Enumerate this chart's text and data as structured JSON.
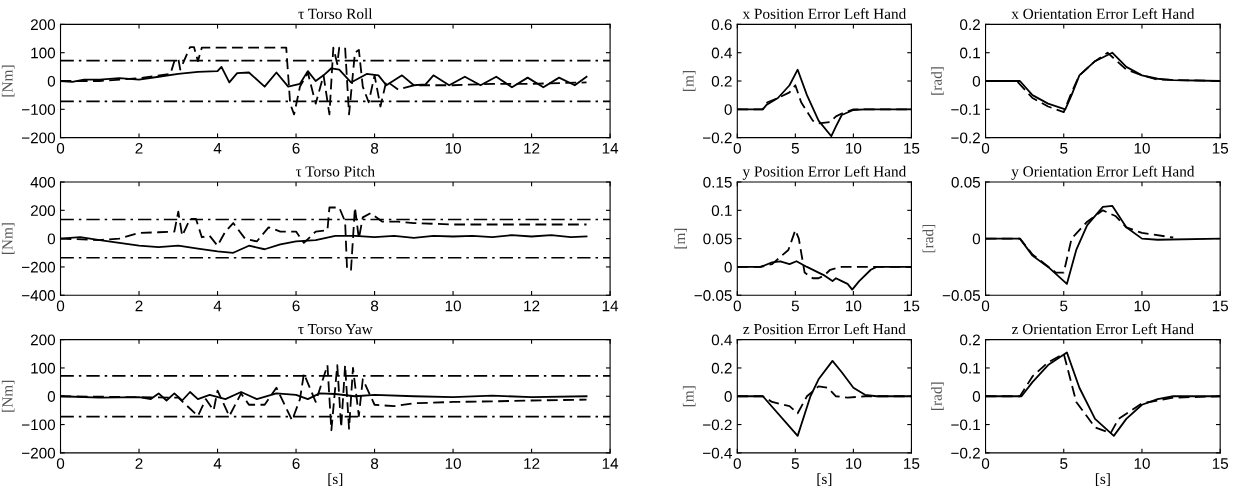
{
  "chart_data": [
    {
      "type": "line",
      "title": "τ Torso Roll",
      "ylabel": "[Nm]",
      "xlim": [
        0,
        14
      ],
      "xticks": [
        0,
        2,
        4,
        6,
        8,
        10,
        12,
        14
      ],
      "ylim": [
        -200,
        200
      ],
      "yticks": [
        -200,
        -100,
        0,
        100,
        200
      ],
      "grid": false,
      "ref_lines": [
        {
          "axis": "y",
          "value": 72,
          "color": "#000000",
          "line_style": "dashdot"
        },
        {
          "axis": "y",
          "value": -72,
          "color": "#000000",
          "line_style": "dashdot"
        }
      ],
      "series": [
        {
          "color": "#000000",
          "line_style": "solid",
          "x": [
            0,
            0.3,
            0.6,
            1,
            1.5,
            2,
            2.5,
            3,
            3.5,
            4,
            4.1,
            4.3,
            4.5,
            4.8,
            5.2,
            5.5,
            5.8,
            6.1,
            6.3,
            6.5,
            6.7,
            6.9,
            7.1,
            7.4,
            7.6,
            7.8,
            8.1,
            8.3,
            8.7,
            9,
            9.3,
            9.5,
            9.9,
            10.3,
            10.7,
            11.1,
            11.5,
            11.9,
            12.3,
            12.7,
            13.1,
            13.4
          ],
          "values": [
            0,
            -3,
            5,
            5,
            10,
            5,
            15,
            25,
            32,
            35,
            50,
            -5,
            28,
            30,
            -20,
            30,
            -20,
            -10,
            35,
            0,
            20,
            45,
            40,
            -5,
            10,
            25,
            20,
            -15,
            20,
            -15,
            -12,
            20,
            -15,
            15,
            -15,
            15,
            -22,
            12,
            -22,
            12,
            -15,
            15
          ]
        },
        {
          "color": "#000000",
          "line_style": "dashed",
          "x": [
            0,
            1,
            2,
            2.8,
            2.9,
            3,
            3.05,
            3.3,
            3.4,
            3.5,
            3.6,
            5.75,
            5.85,
            5.95,
            6.1,
            6.3,
            6.5,
            6.7,
            6.85,
            6.95,
            7.05,
            7.1,
            7.25,
            7.35,
            7.5,
            7.6,
            7.7,
            7.85,
            8,
            8.15,
            8.3,
            8.6,
            9,
            10,
            11,
            12,
            13.4
          ],
          "values": [
            0,
            0,
            10,
            25,
            70,
            80,
            40,
            120,
            120,
            70,
            118,
            118,
            -80,
            -118,
            -20,
            30,
            -80,
            20,
            -118,
            118,
            60,
            118,
            118,
            -118,
            100,
            110,
            -20,
            -75,
            20,
            -90,
            0,
            -30,
            -15,
            -15,
            -10,
            -10,
            -5
          ]
        }
      ]
    },
    {
      "type": "line",
      "title": "x Position Error Left Hand",
      "ylabel": "[m]",
      "xlim": [
        0,
        15
      ],
      "xticks": [
        0,
        5,
        10,
        15
      ],
      "ylim": [
        -0.2,
        0.6
      ],
      "yticks": [
        -0.2,
        0,
        0.2,
        0.4,
        0.6
      ],
      "grid": false,
      "series": [
        {
          "color": "#000000",
          "line_style": "solid",
          "x": [
            0,
            2.2,
            2.5,
            3.5,
            4.5,
            5.2,
            6,
            7,
            8.1,
            8.5,
            9,
            10,
            11,
            15
          ],
          "values": [
            0,
            0,
            0.03,
            0.08,
            0.17,
            0.28,
            0.1,
            -0.08,
            -0.19,
            -0.12,
            -0.04,
            -0.005,
            0,
            0
          ]
        },
        {
          "color": "#000000",
          "line_style": "dashed",
          "x": [
            0,
            2.2,
            2.6,
            3.5,
            4.5,
            5,
            5.5,
            6.5,
            7,
            8,
            8.5,
            9,
            10,
            15
          ],
          "values": [
            0,
            0,
            0.05,
            0.08,
            0.12,
            0.17,
            0.05,
            -0.08,
            -0.1,
            -0.09,
            -0.05,
            -0.03,
            0,
            0
          ]
        }
      ]
    },
    {
      "type": "line",
      "title": "x Orientation Error Left Hand",
      "ylabel": "[rad]",
      "xlim": [
        0,
        15
      ],
      "xticks": [
        0,
        5,
        10,
        15
      ],
      "ylim": [
        -0.2,
        0.2
      ],
      "yticks": [
        -0.2,
        -0.1,
        0,
        0.1,
        0.2
      ],
      "grid": false,
      "series": [
        {
          "color": "#000000",
          "line_style": "solid",
          "x": [
            0,
            2.2,
            3,
            4,
            5.1,
            5.5,
            6,
            7,
            8.1,
            9,
            10,
            11,
            12,
            15
          ],
          "values": [
            0,
            0,
            -0.05,
            -0.08,
            -0.1,
            -0.05,
            0.02,
            0.07,
            0.1,
            0.05,
            0.02,
            0.008,
            0.003,
            0
          ]
        },
        {
          "color": "#000000",
          "line_style": "dashed",
          "x": [
            0,
            2,
            3,
            4,
            5,
            5.5,
            6,
            7,
            7.8,
            9,
            10,
            11,
            15
          ],
          "values": [
            0,
            0,
            -0.06,
            -0.09,
            -0.11,
            -0.04,
            0.02,
            0.07,
            0.1,
            0.04,
            0.02,
            0.005,
            0
          ]
        }
      ]
    },
    {
      "type": "line",
      "title": "τ Torso Pitch",
      "ylabel": "[Nm]",
      "xlim": [
        0,
        14
      ],
      "xticks": [
        0,
        2,
        4,
        6,
        8,
        10,
        12,
        14
      ],
      "ylim": [
        -400,
        400
      ],
      "yticks": [
        -400,
        -200,
        0,
        200,
        400
      ],
      "grid": false,
      "ref_lines": [
        {
          "axis": "y",
          "value": 135,
          "color": "#000000",
          "line_style": "dashdot"
        },
        {
          "axis": "y",
          "value": -135,
          "color": "#000000",
          "line_style": "dashdot"
        }
      ],
      "series": [
        {
          "color": "#000000",
          "line_style": "solid",
          "x": [
            0,
            0.5,
            1,
            1.5,
            2,
            2.5,
            3,
            3.5,
            4,
            4.4,
            4.8,
            5.2,
            5.6,
            6,
            6.5,
            7,
            7.5,
            8,
            8.5,
            9,
            9.5,
            10,
            10.5,
            11,
            11.5,
            12,
            12.5,
            13,
            13.4
          ],
          "values": [
            0,
            10,
            -10,
            -30,
            -50,
            -60,
            -50,
            -70,
            -90,
            -100,
            -50,
            -75,
            -40,
            -20,
            -10,
            20,
            20,
            10,
            20,
            5,
            20,
            15,
            20,
            10,
            25,
            15,
            25,
            10,
            15
          ]
        },
        {
          "color": "#000000",
          "line_style": "dashed",
          "x": [
            0,
            1,
            1.5,
            2,
            2.5,
            2.9,
            3,
            3.1,
            3.3,
            3.45,
            3.6,
            3.8,
            4,
            4.2,
            4.4,
            4.7,
            5,
            5.3,
            5.6,
            6,
            6.2,
            6.5,
            6.8,
            6.85,
            7.1,
            7.25,
            7.3,
            7.4,
            7.5,
            7.6,
            7.7,
            7.9,
            8.2,
            8.6,
            9,
            10,
            11,
            12,
            13.4
          ],
          "values": [
            0,
            -10,
            0,
            40,
            45,
            50,
            190,
            20,
            140,
            140,
            10,
            20,
            -50,
            50,
            110,
            0,
            -20,
            80,
            50,
            50,
            -30,
            50,
            60,
            220,
            220,
            120,
            -220,
            -220,
            220,
            0,
            150,
            180,
            120,
            120,
            110,
            100,
            100,
            100,
            100
          ]
        }
      ]
    },
    {
      "type": "line",
      "title": "y Position Error Left Hand",
      "ylabel": "[m]",
      "xlim": [
        0,
        15
      ],
      "xticks": [
        0,
        5,
        10,
        15
      ],
      "ylim": [
        -0.05,
        0.15
      ],
      "yticks": [
        -0.05,
        0,
        0.05,
        0.1,
        0.15
      ],
      "grid": false,
      "series": [
        {
          "color": "#000000",
          "line_style": "solid",
          "x": [
            0,
            2,
            3,
            3.7,
            4.5,
            5.1,
            6,
            7,
            7.5,
            8.2,
            8.5,
            9,
            9.5,
            9.9,
            10.5,
            11.5,
            12,
            15
          ],
          "values": [
            0,
            0,
            0.008,
            0.01,
            0.005,
            0.01,
            0,
            -0.01,
            -0.015,
            -0.025,
            -0.02,
            -0.025,
            -0.03,
            -0.04,
            -0.025,
            -0.005,
            0,
            0
          ]
        },
        {
          "color": "#000000",
          "line_style": "dashed",
          "x": [
            0,
            2,
            3,
            4.4,
            5,
            5.3,
            5.8,
            6.5,
            7,
            7.5,
            8,
            9,
            12,
            15
          ],
          "values": [
            0,
            0,
            0.005,
            0.03,
            0.065,
            0.05,
            -0.01,
            -0.02,
            -0.02,
            -0.015,
            -0.005,
            0,
            0,
            0
          ]
        }
      ]
    },
    {
      "type": "line",
      "title": "y Orientation Error Left Hand",
      "ylabel": "[rad]",
      "xlim": [
        0,
        15
      ],
      "xticks": [
        0,
        5,
        10,
        15
      ],
      "ylim": [
        -0.05,
        0.05
      ],
      "yticks": [
        -0.05,
        0,
        0.05
      ],
      "grid": false,
      "series": [
        {
          "color": "#000000",
          "line_style": "solid",
          "x": [
            0,
            2.2,
            3,
            4,
            5.2,
            5.8,
            6.5,
            7.5,
            8.1,
            9,
            10,
            11,
            15
          ],
          "values": [
            0,
            0,
            -0.015,
            -0.025,
            -0.04,
            -0.01,
            0.012,
            0.028,
            0.029,
            0.01,
            0,
            -0.001,
            0
          ]
        },
        {
          "color": "#000000",
          "line_style": "dashed",
          "x": [
            0,
            2.2,
            3,
            4.5,
            5,
            5.5,
            6.5,
            7.5,
            8.3,
            9,
            10,
            12
          ],
          "values": [
            0,
            0,
            -0.014,
            -0.03,
            -0.03,
            0,
            0.015,
            0.025,
            0.02,
            0.01,
            0.005,
            0.001
          ]
        }
      ]
    },
    {
      "type": "line",
      "title": "τ Torso Yaw",
      "xlabel": "[s]",
      "ylabel": "[Nm]",
      "xlim": [
        0,
        14
      ],
      "xticks": [
        0,
        2,
        4,
        6,
        8,
        10,
        12,
        14
      ],
      "ylim": [
        -200,
        200
      ],
      "yticks": [
        -200,
        -100,
        0,
        100,
        200
      ],
      "grid": false,
      "ref_lines": [
        {
          "axis": "y",
          "value": 72,
          "color": "#000000",
          "line_style": "dashdot"
        },
        {
          "axis": "y",
          "value": -72,
          "color": "#000000",
          "line_style": "dashdot"
        }
      ],
      "series": [
        {
          "color": "#000000",
          "line_style": "solid",
          "x": [
            0,
            1,
            2,
            2.3,
            2.5,
            2.7,
            2.9,
            3.1,
            3.3,
            3.5,
            3.8,
            4.2,
            4.6,
            5,
            5.5,
            6,
            6.3,
            6.6,
            7,
            7.5,
            8,
            9,
            10,
            11,
            12,
            13.4
          ],
          "values": [
            0,
            -5,
            -3,
            -10,
            10,
            -15,
            10,
            -15,
            15,
            -10,
            5,
            -10,
            15,
            -10,
            10,
            5,
            -10,
            10,
            8,
            0,
            5,
            0,
            -3,
            2,
            -3,
            0
          ]
        },
        {
          "color": "#000000",
          "line_style": "dashed",
          "x": [
            0,
            3,
            3.5,
            3.7,
            3.9,
            4,
            4.3,
            4.6,
            4.8,
            5.2,
            5.5,
            5.9,
            6.1,
            6.2,
            6.5,
            6.8,
            6.9,
            7.05,
            7.15,
            7.25,
            7.35,
            7.45,
            7.6,
            7.7,
            8,
            8.5,
            9,
            10,
            11,
            12,
            13.4
          ],
          "values": [
            0,
            -5,
            -70,
            -10,
            -50,
            20,
            -70,
            10,
            -30,
            -30,
            30,
            -85,
            -10,
            80,
            -20,
            110,
            -120,
            110,
            -110,
            110,
            -115,
            100,
            -70,
            60,
            -30,
            -35,
            -25,
            -20,
            -18,
            -15,
            -12
          ]
        }
      ]
    },
    {
      "type": "line",
      "title": "z Position Error Left Hand",
      "xlabel": "[s]",
      "ylabel": "[m]",
      "xlim": [
        0,
        15
      ],
      "xticks": [
        0,
        5,
        10,
        15
      ],
      "ylim": [
        -0.4,
        0.4
      ],
      "yticks": [
        -0.4,
        -0.2,
        0,
        0.2,
        0.4
      ],
      "grid": false,
      "series": [
        {
          "color": "#000000",
          "line_style": "solid",
          "x": [
            0,
            2.2,
            5.2,
            6.3,
            7,
            8.2,
            9,
            10,
            11,
            12,
            15
          ],
          "values": [
            0,
            0,
            -0.28,
            0,
            0.12,
            0.25,
            0.17,
            0.06,
            0.01,
            0,
            0
          ]
        },
        {
          "color": "#000000",
          "line_style": "dashed",
          "x": [
            0,
            2.2,
            3,
            4.5,
            5.2,
            6,
            7,
            7.8,
            8.5,
            9.5,
            11,
            15
          ],
          "values": [
            0,
            0,
            -0.04,
            -0.07,
            -0.12,
            0,
            0.07,
            0.06,
            0,
            -0.01,
            0,
            0
          ]
        }
      ]
    },
    {
      "type": "line",
      "title": "z Orientation Error Left Hand",
      "xlabel": "[s]",
      "ylabel": "[rad]",
      "xlim": [
        0,
        15
      ],
      "xticks": [
        0,
        5,
        10,
        15
      ],
      "ylim": [
        -0.2,
        0.2
      ],
      "yticks": [
        -0.2,
        -0.1,
        0,
        0.1,
        0.2
      ],
      "grid": false,
      "series": [
        {
          "color": "#000000",
          "line_style": "solid",
          "x": [
            0,
            2.3,
            3,
            4,
            5.2,
            6,
            7,
            8.2,
            9,
            10,
            11,
            12,
            15
          ],
          "values": [
            0,
            0,
            0.05,
            0.11,
            0.155,
            0.03,
            -0.08,
            -0.14,
            -0.08,
            -0.03,
            -0.01,
            0,
            0
          ]
        },
        {
          "color": "#000000",
          "line_style": "dashed",
          "x": [
            0,
            2.2,
            3,
            4,
            5,
            5.8,
            7,
            8,
            8.5,
            10,
            12,
            15
          ],
          "values": [
            0,
            0,
            0.07,
            0.12,
            0.15,
            -0.02,
            -0.11,
            -0.13,
            -0.08,
            -0.025,
            -0.005,
            0
          ]
        }
      ]
    }
  ]
}
